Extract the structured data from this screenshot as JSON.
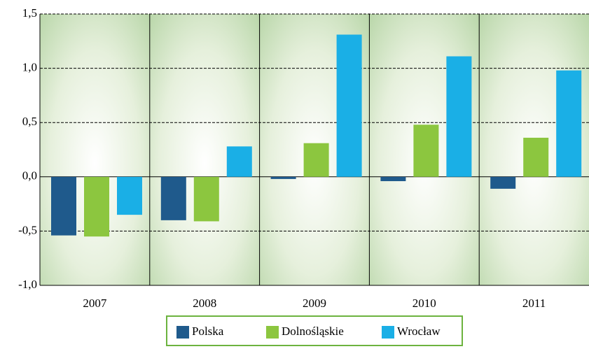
{
  "chart_data": {
    "type": "bar",
    "categories": [
      "2007",
      "2008",
      "2009",
      "2010",
      "2011"
    ],
    "series": [
      {
        "name": "Polska",
        "color": "#1f5a8c",
        "values": [
          -0.54,
          -0.4,
          -0.02,
          -0.04,
          -0.11
        ]
      },
      {
        "name": "Dolnośląskie",
        "color": "#8cc63f",
        "values": [
          -0.55,
          -0.41,
          0.31,
          0.48,
          0.36
        ]
      },
      {
        "name": "Wrocław",
        "color": "#1aafe6",
        "values": [
          -0.35,
          0.28,
          1.31,
          1.11,
          0.98
        ]
      }
    ],
    "ylim": [
      -1.0,
      1.5
    ],
    "yticks": [
      {
        "value": -1.0,
        "label": "-1,0"
      },
      {
        "value": -0.5,
        "label": "-0,5"
      },
      {
        "value": 0,
        "label": "0,0"
      },
      {
        "value": 0.5,
        "label": "0,5"
      },
      {
        "value": 1.0,
        "label": "1,0"
      },
      {
        "value": 1.5,
        "label": "1,5"
      }
    ],
    "grid": true,
    "legend": "bottom"
  }
}
